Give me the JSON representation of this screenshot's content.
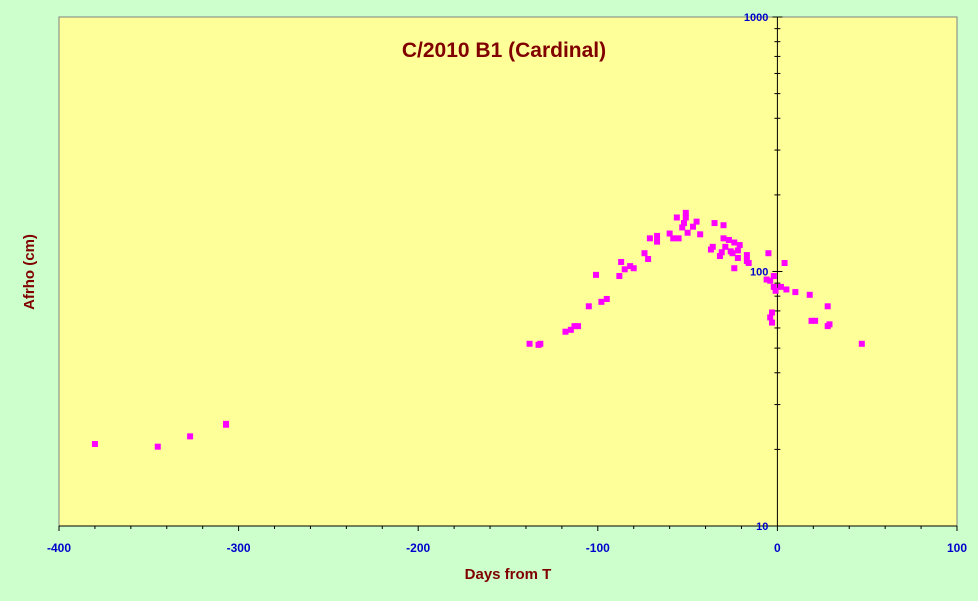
{
  "chart_data": {
    "type": "scatter",
    "title": "C/2010 B1 (Cardinal)",
    "xlabel": "Days from T",
    "ylabel": "Afrho (cm)",
    "x_scale": "linear",
    "y_scale": "log",
    "xlim": [
      -400,
      100
    ],
    "ylim": [
      10,
      1000
    ],
    "x_ticks": [
      "-400",
      "-300",
      "-200",
      "-100",
      "0",
      "100"
    ],
    "y_ticks": [
      "10",
      "100",
      "1000"
    ],
    "grid": false,
    "legend": "none",
    "colors": {
      "plot_background": "#ffff99",
      "page_background": "#ccffcc",
      "marker": "#ff00ff",
      "tick_labels": "#0000cc",
      "titles": "#800000"
    },
    "series": [
      {
        "marker": "square",
        "points": [
          [
            -380,
            21
          ],
          [
            -345,
            20.5
          ],
          [
            -327,
            22.5
          ],
          [
            -307,
            25
          ],
          [
            -307,
            25.2
          ],
          [
            -138,
            52
          ],
          [
            -133,
            51.5
          ],
          [
            -132,
            52
          ],
          [
            -118,
            58
          ],
          [
            -115,
            59
          ],
          [
            -113,
            61
          ],
          [
            -111,
            61
          ],
          [
            -105,
            73
          ],
          [
            -101,
            97
          ],
          [
            -98,
            76
          ],
          [
            -95,
            78
          ],
          [
            -88,
            96
          ],
          [
            -87,
            109
          ],
          [
            -85,
            102
          ],
          [
            -82,
            105
          ],
          [
            -80,
            103
          ],
          [
            -74,
            118
          ],
          [
            -72,
            112
          ],
          [
            -71,
            135
          ],
          [
            -67,
            138
          ],
          [
            -67,
            131
          ],
          [
            -60,
            141
          ],
          [
            -58,
            135
          ],
          [
            -56,
            163
          ],
          [
            -55,
            135
          ],
          [
            -53,
            149
          ],
          [
            -52,
            155
          ],
          [
            -51,
            163
          ],
          [
            -51,
            170
          ],
          [
            -50,
            142
          ],
          [
            -47,
            150
          ],
          [
            -45,
            157
          ],
          [
            -43,
            140
          ],
          [
            -37,
            122
          ],
          [
            -36,
            125
          ],
          [
            -35,
            155
          ],
          [
            -32,
            115
          ],
          [
            -31,
            119
          ],
          [
            -30,
            135
          ],
          [
            -30,
            152
          ],
          [
            -29,
            125
          ],
          [
            -27,
            133
          ],
          [
            -26,
            120
          ],
          [
            -25,
            118
          ],
          [
            -24,
            103
          ],
          [
            -24,
            130
          ],
          [
            -22,
            113
          ],
          [
            -22,
            121
          ],
          [
            -21,
            127
          ],
          [
            -17,
            116
          ],
          [
            -17,
            110
          ],
          [
            -16,
            108
          ],
          [
            -6,
            93
          ],
          [
            -5,
            118
          ],
          [
            -4,
            92
          ],
          [
            -4,
            66
          ],
          [
            -3,
            69
          ],
          [
            -3,
            63
          ],
          [
            -2,
            87
          ],
          [
            -2,
            96
          ],
          [
            -1,
            84
          ],
          [
            2,
            87
          ],
          [
            4,
            108
          ],
          [
            5,
            85
          ],
          [
            10,
            83
          ],
          [
            18,
            81
          ],
          [
            19,
            64
          ],
          [
            21,
            64
          ],
          [
            28,
            73
          ],
          [
            28,
            61
          ],
          [
            29,
            62
          ],
          [
            47,
            52
          ]
        ]
      }
    ]
  }
}
